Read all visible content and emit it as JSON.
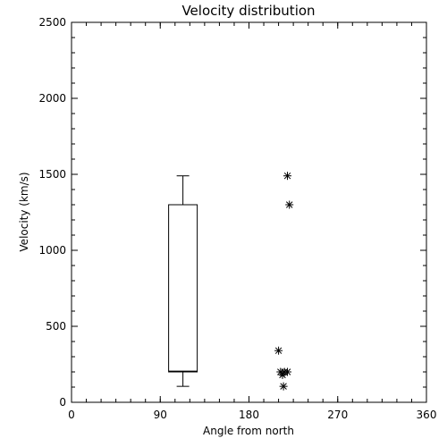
{
  "chart_data": {
    "type": "box",
    "title": "Velocity distribution",
    "xlabel": "Angle from north",
    "ylabel": "Velocity (km/s)",
    "xlim": [
      0,
      360
    ],
    "ylim": [
      0,
      2500
    ],
    "xticks": [
      0,
      90,
      180,
      270,
      360
    ],
    "yticks": [
      0,
      500,
      1000,
      1500,
      2000,
      2500
    ],
    "grid": false,
    "box": {
      "x": 113,
      "whisker_low": 105,
      "q1": 200,
      "median": 205,
      "q3": 1300,
      "whisker_high": 1490
    },
    "points": [
      {
        "x": 219,
        "y": 1490
      },
      {
        "x": 221,
        "y": 1300
      },
      {
        "x": 210,
        "y": 340
      },
      {
        "x": 212,
        "y": 200
      },
      {
        "x": 214,
        "y": 180
      },
      {
        "x": 216,
        "y": 200
      },
      {
        "x": 219,
        "y": 200
      },
      {
        "x": 215,
        "y": 105
      }
    ]
  }
}
